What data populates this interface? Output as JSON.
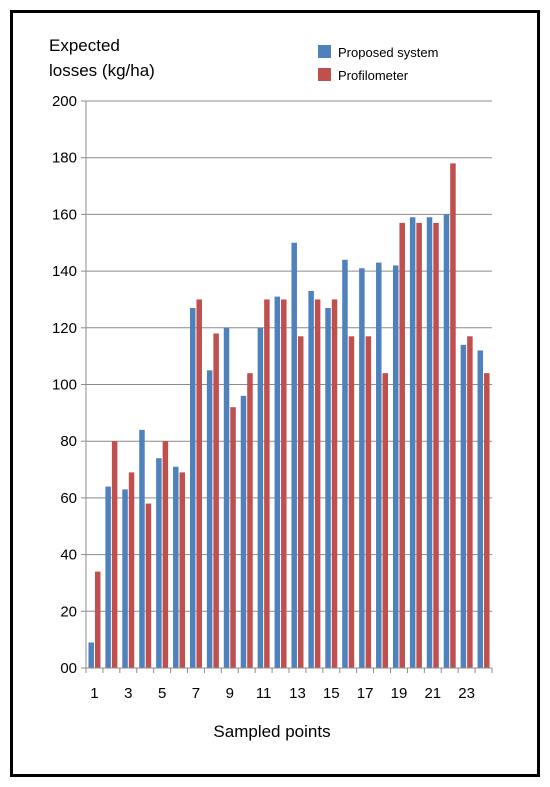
{
  "chart_data": {
    "type": "bar",
    "ylabel_lines": [
      "Expected",
      "losses (kg/ha)"
    ],
    "xlabel": "Sampled points",
    "ylim": [
      0,
      200
    ],
    "y_ticks": [
      0,
      20,
      40,
      60,
      80,
      100,
      120,
      140,
      160,
      180,
      200
    ],
    "y_tick_labels": [
      "00",
      "20",
      "40",
      "60",
      "80",
      "100",
      "120",
      "140",
      "160",
      "180",
      "200"
    ],
    "categories": [
      "1",
      "2",
      "3",
      "4",
      "5",
      "6",
      "7",
      "8",
      "9",
      "10",
      "11",
      "12",
      "13",
      "14",
      "15",
      "16",
      "17",
      "18",
      "19",
      "20",
      "21",
      "22",
      "23",
      "24"
    ],
    "x_tick_labels": [
      "1",
      "3",
      "5",
      "7",
      "9",
      "11",
      "13",
      "15",
      "17",
      "19",
      "21",
      "23"
    ],
    "grid": "horizontal",
    "legend_position": "top-right",
    "series": [
      {
        "name": "Proposed system",
        "color": "#4f81bd",
        "values": [
          9,
          64,
          63,
          84,
          74,
          71,
          127,
          105,
          120,
          96,
          120,
          131,
          150,
          133,
          127,
          144,
          141,
          143,
          142,
          159,
          159,
          160,
          114,
          112
        ]
      },
      {
        "name": "Profilometer",
        "color": "#c0504d",
        "values": [
          34,
          80,
          69,
          58,
          80,
          69,
          130,
          118,
          92,
          104,
          130,
          130,
          117,
          130,
          130,
          117,
          117,
          104,
          157,
          157,
          157,
          178,
          117,
          104
        ]
      }
    ]
  }
}
